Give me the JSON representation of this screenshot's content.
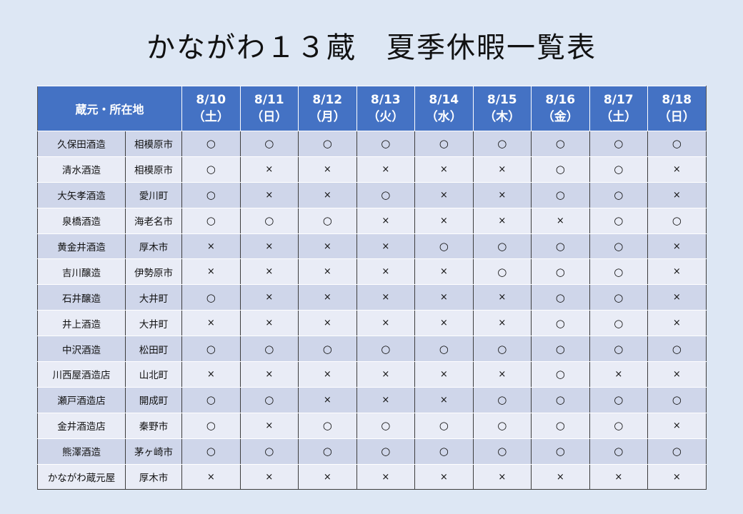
{
  "title": "かながわ１３蔵　夏季休暇一覧表",
  "table": {
    "location_header": "蔵元・所在地",
    "days": [
      {
        "date": "8/10",
        "dow": "（土）"
      },
      {
        "date": "8/11",
        "dow": "（日）"
      },
      {
        "date": "8/12",
        "dow": "（月）"
      },
      {
        "date": "8/13",
        "dow": "（火）"
      },
      {
        "date": "8/14",
        "dow": "（水）"
      },
      {
        "date": "8/15",
        "dow": "（木）"
      },
      {
        "date": "8/16",
        "dow": "（金）"
      },
      {
        "date": "8/17",
        "dow": "（土）"
      },
      {
        "date": "8/18",
        "dow": "（日）"
      }
    ],
    "rows": [
      {
        "name": "久保田酒造",
        "city": "相模原市",
        "marks": [
          "○",
          "○",
          "○",
          "○",
          "○",
          "○",
          "○",
          "○",
          "○"
        ]
      },
      {
        "name": "清水酒造",
        "city": "相模原市",
        "marks": [
          "○",
          "×",
          "×",
          "×",
          "×",
          "×",
          "○",
          "○",
          "×"
        ]
      },
      {
        "name": "大矢孝酒造",
        "city": "愛川町",
        "marks": [
          "○",
          "×",
          "×",
          "○",
          "×",
          "×",
          "○",
          "○",
          "×"
        ]
      },
      {
        "name": "泉橋酒造",
        "city": "海老名市",
        "marks": [
          "○",
          "○",
          "○",
          "×",
          "×",
          "×",
          "×",
          "○",
          "○"
        ]
      },
      {
        "name": "黄金井酒造",
        "city": "厚木市",
        "marks": [
          "×",
          "×",
          "×",
          "×",
          "○",
          "○",
          "○",
          "○",
          "×"
        ]
      },
      {
        "name": "吉川醸造",
        "city": "伊勢原市",
        "marks": [
          "×",
          "×",
          "×",
          "×",
          "×",
          "○",
          "○",
          "○",
          "×"
        ]
      },
      {
        "name": "石井醸造",
        "city": "大井町",
        "marks": [
          "○",
          "×",
          "×",
          "×",
          "×",
          "×",
          "○",
          "○",
          "×"
        ]
      },
      {
        "name": "井上酒造",
        "city": "大井町",
        "marks": [
          "×",
          "×",
          "×",
          "×",
          "×",
          "×",
          "○",
          "○",
          "×"
        ]
      },
      {
        "name": "中沢酒造",
        "city": "松田町",
        "marks": [
          "○",
          "○",
          "○",
          "○",
          "○",
          "○",
          "○",
          "○",
          "○"
        ]
      },
      {
        "name": "川西屋酒造店",
        "city": "山北町",
        "marks": [
          "×",
          "×",
          "×",
          "×",
          "×",
          "×",
          "○",
          "×",
          "×"
        ]
      },
      {
        "name": "瀬戸酒造店",
        "city": "開成町",
        "marks": [
          "○",
          "○",
          "×",
          "×",
          "×",
          "○",
          "○",
          "○",
          "○"
        ]
      },
      {
        "name": "金井酒造店",
        "city": "秦野市",
        "marks": [
          "○",
          "×",
          "○",
          "○",
          "○",
          "○",
          "○",
          "○",
          "×"
        ]
      },
      {
        "name": "熊澤酒造",
        "city": "茅ヶ崎市",
        "marks": [
          "○",
          "○",
          "○",
          "○",
          "○",
          "○",
          "○",
          "○",
          "○"
        ]
      },
      {
        "name": "かながわ蔵元屋",
        "city": "厚木市",
        "marks": [
          "×",
          "×",
          "×",
          "×",
          "×",
          "×",
          "×",
          "×",
          "×"
        ]
      }
    ]
  },
  "colors": {
    "background": "#dde7f4",
    "header_fill": "#4472c4",
    "row_fill_dark": "#cfd6ea",
    "row_fill_light": "#e9ecf6"
  }
}
